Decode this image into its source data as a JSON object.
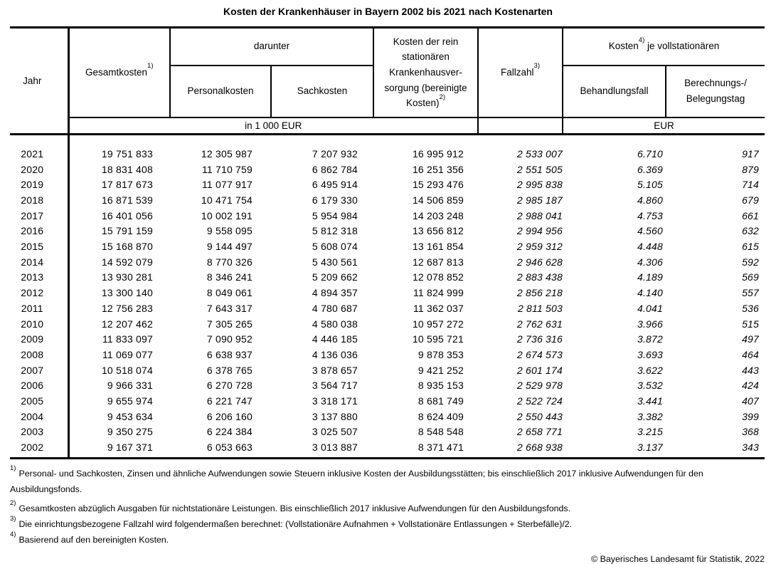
{
  "title": "Kosten der Krankenhäuser in Bayern 2002 bis 2021 nach Kostenarten",
  "table": {
    "header": {
      "jahr": "Jahr",
      "gesamtkosten": {
        "label": "Gesamtkosten",
        "sup": "1)"
      },
      "darunter": "darunter",
      "personalkosten": "Personalkosten",
      "sachkosten": "Sachkosten",
      "bereinigte_kosten": {
        "label": "Kosten der rein stationären Krankenhausver-sorgung (bereinigte Kosten)",
        "sup": "2)"
      },
      "fallzahl": {
        "label": "Fallzahl",
        "sup": "3)"
      },
      "kosten_je": {
        "pre": "Kosten",
        "sup": "4)",
        "post": " je vollstationären"
      },
      "behandlungsfall": "Behandlungsfall",
      "berechnungstag": {
        "line1": "Berechnungs-/",
        "line2": "Belegungstag"
      }
    },
    "units": {
      "left": "in 1 000 EUR",
      "right": "EUR"
    },
    "column_names": [
      "jahr",
      "gesamtkosten",
      "personalkosten",
      "sachkosten",
      "bereinigte-kosten",
      "fallzahl",
      "behandlungsfall",
      "berechnungstag"
    ],
    "rows": [
      [
        "2021",
        "19 751 833",
        "12 305 987",
        "7 207 932",
        "16 995 912",
        "2 533 007",
        "6.710",
        "917"
      ],
      [
        "2020",
        "18 831 408",
        "11 710 759",
        "6 862 784",
        "16 251 356",
        "2 551 505",
        "6.369",
        "879"
      ],
      [
        "2019",
        "17 817 673",
        "11 077 917",
        "6 495 914",
        "15 293 476",
        "2 995 838",
        "5.105",
        "714"
      ],
      [
        "2018",
        "16 871 539",
        "10 471 754",
        "6 179 330",
        "14 506 859",
        "2 985 187",
        "4.860",
        "679"
      ],
      [
        "2017",
        "16 401 056",
        "10 002 191",
        "5 954 984",
        "14 203 248",
        "2 988 041",
        "4.753",
        "661"
      ],
      [
        "2016",
        "15 791 159",
        "9 558 095",
        "5 812 318",
        "13 656 812",
        "2 994 956",
        "4.560",
        "632"
      ],
      [
        "2015",
        "15 168 870",
        "9 144 497",
        "5 608 074",
        "13 161 854",
        "2 959 312",
        "4.448",
        "615"
      ],
      [
        "2014",
        "14 592 079",
        "8 770 326",
        "5 430 561",
        "12 687 813",
        "2 946 628",
        "4.306",
        "592"
      ],
      [
        "2013",
        "13 930 281",
        "8 346 241",
        "5 209 662",
        "12 078 852",
        "2 883 438",
        "4.189",
        "569"
      ],
      [
        "2012",
        "13 300 140",
        "8 049 061",
        "4 894 357",
        "11 824 999",
        "2 856 218",
        "4.140",
        "557"
      ],
      [
        "2011",
        "12 756 283",
        "7 643 317",
        "4 780 687",
        "11 362 037",
        "2 811 503",
        "4.041",
        "536"
      ],
      [
        "2010",
        "12 207 462",
        "7 305 265",
        "4 580 038",
        "10 957 272",
        "2 762 631",
        "3.966",
        "515"
      ],
      [
        "2009",
        "11 833 097",
        "7 090 952",
        "4 446 185",
        "10 595 721",
        "2 736 316",
        "3.872",
        "497"
      ],
      [
        "2008",
        "11 069 077",
        "6 638 937",
        "4 136 036",
        "9 878 353",
        "2 674 573",
        "3.693",
        "464"
      ],
      [
        "2007",
        "10 518 074",
        "6 378 765",
        "3 878 657",
        "9 421 252",
        "2 601 174",
        "3.622",
        "443"
      ],
      [
        "2006",
        "9 966 331",
        "6 270 728",
        "3 564 717",
        "8 935 153",
        "2 529 978",
        "3.532",
        "424"
      ],
      [
        "2005",
        "9 655 974",
        "6 221 747",
        "3 318 171",
        "8 681 749",
        "2 522 724",
        "3.441",
        "407"
      ],
      [
        "2004",
        "9 453 634",
        "6 206 160",
        "3 137 880",
        "8 624 409",
        "2 550 443",
        "3.382",
        "399"
      ],
      [
        "2003",
        "9 350 275",
        "6 224 384",
        "3 025 507",
        "8 548 548",
        "2 658 771",
        "3.215",
        "368"
      ],
      [
        "2002",
        "9 167 371",
        "6 053 663",
        "3 013 887",
        "8 371 471",
        "2 668 938",
        "3.137",
        "343"
      ]
    ]
  },
  "footnotes": [
    {
      "sup": "1)",
      "text": "Personal- und Sachkosten, Zinsen und ähnliche Aufwendungen sowie Steuern inklusive Kosten der Ausbildungsstätten; bis einschließlich 2017 inklusive Aufwendungen für den Ausbildungsfonds."
    },
    {
      "sup": "2)",
      "text": "Gesamtkosten abzüglich Ausgaben für nichtstationäre Leistungen. Bis einschließlich 2017 inklusive Aufwendungen für den Ausbildungsfonds."
    },
    {
      "sup": "3)",
      "text": "Die einrichtungsbezogene Fallzahl wird folgendermaßen berechnet: (Vollstationäre Aufnahmen + Vollstationäre Entlassungen + Sterbefälle)/2."
    },
    {
      "sup": "4)",
      "text": "Basierend auf den bereinigten Kosten."
    }
  ],
  "copyright": "© Bayerisches Landesamt für Statistik, 2022"
}
